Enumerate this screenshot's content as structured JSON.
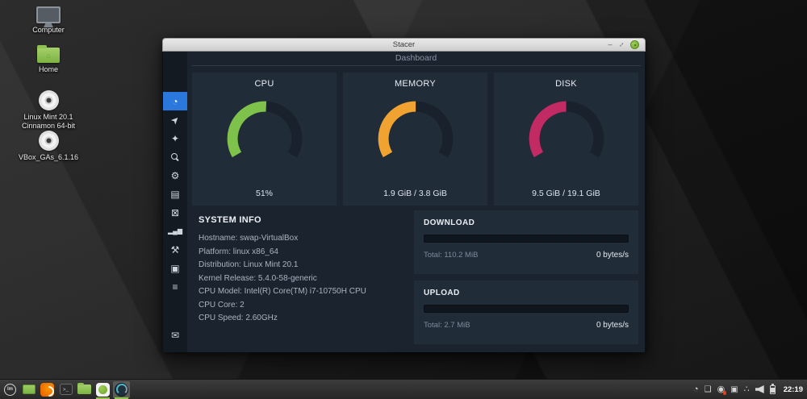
{
  "desktop": {
    "icons": [
      {
        "name": "computer",
        "label": "Computer"
      },
      {
        "name": "home",
        "label": "Home"
      },
      {
        "name": "mint-iso",
        "label": "Linux Mint 20.1 Cinnamon 64-bit"
      },
      {
        "name": "vbox-guest-additions",
        "label": "VBox_GAs_6.1.16"
      }
    ]
  },
  "window": {
    "title": "Stacer",
    "controls": {
      "minimize_glyph": "–",
      "maximize_glyph": "↕"
    }
  },
  "sidebar": {
    "items": [
      {
        "name": "dashboard",
        "glyph": "◔",
        "active": true
      },
      {
        "name": "startup-apps",
        "glyph": "➤",
        "active": false
      },
      {
        "name": "system-cleaner",
        "glyph": "✦",
        "active": false
      },
      {
        "name": "search",
        "glyph": "",
        "active": false
      },
      {
        "name": "services",
        "glyph": "⚙",
        "active": false
      },
      {
        "name": "processes",
        "glyph": "▤",
        "active": false
      },
      {
        "name": "uninstaller",
        "glyph": "⊠",
        "active": false
      },
      {
        "name": "resources",
        "glyph": "▂▄▆",
        "active": false
      },
      {
        "name": "helpers",
        "glyph": "⚒",
        "active": false
      },
      {
        "name": "apt-repository",
        "glyph": "▣",
        "active": false
      },
      {
        "name": "settings",
        "glyph": "≡",
        "active": false
      }
    ],
    "feedback_glyph": "✉"
  },
  "dashboard": {
    "title": "Dashboard",
    "gauges": [
      {
        "id": "cpu",
        "label": "CPU",
        "value_text": "51%",
        "percent": 51,
        "color": "#7ec24c"
      },
      {
        "id": "memory",
        "label": "MEMORY",
        "value_text": "1.9 GiB / 3.8 GiB",
        "percent": 50,
        "color": "#f0a330"
      },
      {
        "id": "disk",
        "label": "DISK",
        "value_text": "9.5 GiB / 19.1 GiB",
        "percent": 49.7,
        "color": "#c22a63"
      }
    ],
    "system_info": {
      "title": "SYSTEM INFO",
      "lines": [
        "Hostname: swap-VirtualBox",
        "Platform: linux x86_64",
        "Distribution: Linux Mint 20.1",
        "Kernel Release: 5.4.0-58-generic",
        "CPU Model: Intel(R) Core(TM) i7-10750H CPU",
        "CPU Core: 2",
        "CPU Speed: 2.60GHz"
      ]
    },
    "network": [
      {
        "title": "DOWNLOAD",
        "total": "Total: 110.2 MiB",
        "rate": "0 bytes/s",
        "progress_percent": 0
      },
      {
        "title": "UPLOAD",
        "total": "Total: 2.7 MiB",
        "rate": "0 bytes/s",
        "progress_percent": 0
      }
    ]
  },
  "taskbar": {
    "mint_menu_label": "lm",
    "terminal_glyph": ">_",
    "tray": {
      "stacer_glyph": "◔",
      "window_glyph": "❑",
      "update_glyph": "◉",
      "media_glyph": "▣",
      "network_glyph": "∴",
      "clock": "22:19"
    }
  },
  "colors": {
    "sidebar_active_blue": "#2b78dd",
    "cpu_green": "#7ec24c",
    "memory_orange": "#f0a330",
    "disk_pink": "#c22a63",
    "gauge_track": "#18212c",
    "running_indicator_green": "#8dc63f",
    "close_button_green": "#79b530"
  }
}
